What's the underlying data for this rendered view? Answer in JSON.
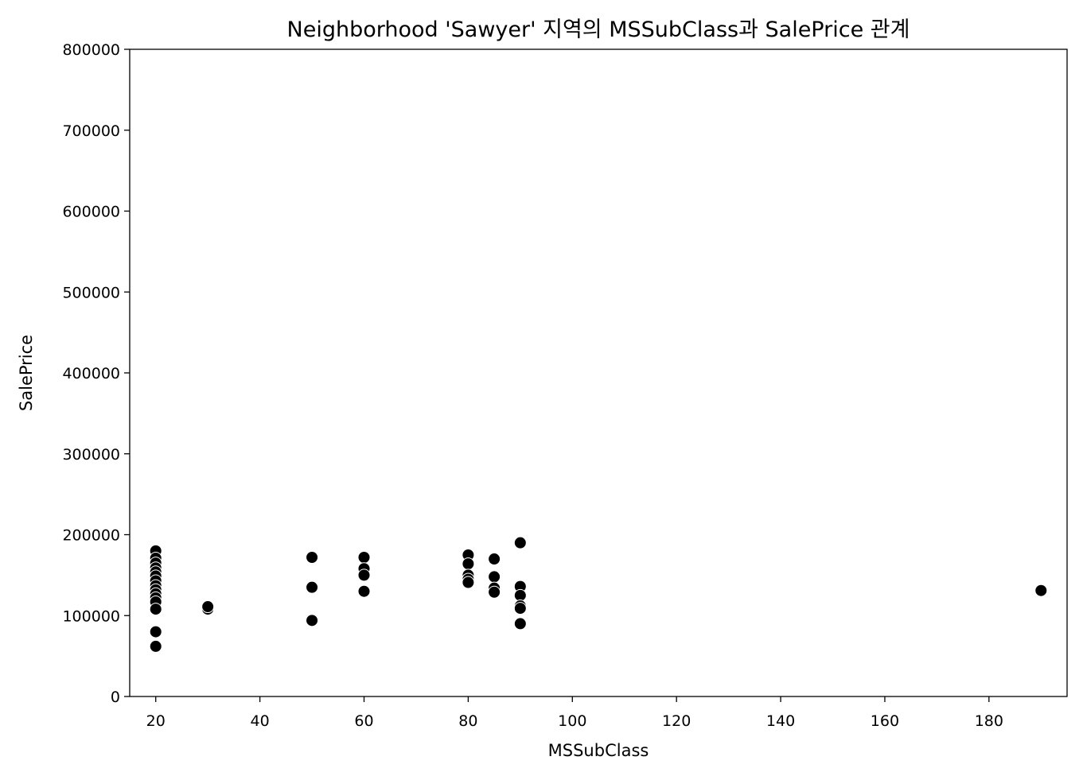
{
  "chart_data": {
    "type": "scatter",
    "title": "Neighborhood 'Sawyer' 지역의 MSSubClass과 SalePrice 관계",
    "xlabel": "MSSubClass",
    "ylabel": "SalePrice",
    "xlim": [
      15,
      195
    ],
    "ylim": [
      0,
      800000
    ],
    "xticks": [
      20,
      40,
      60,
      80,
      100,
      120,
      140,
      160,
      180
    ],
    "yticks": [
      0,
      100000,
      200000,
      300000,
      400000,
      500000,
      600000,
      700000,
      800000
    ],
    "grid": false,
    "marker_color": "#000000",
    "marker_edge_color": "#ffffff",
    "points": [
      [
        20,
        180000
      ],
      [
        20,
        171000
      ],
      [
        20,
        165000
      ],
      [
        20,
        159000
      ],
      [
        20,
        154000
      ],
      [
        20,
        149000
      ],
      [
        20,
        143000
      ],
      [
        20,
        137000
      ],
      [
        20,
        132000
      ],
      [
        20,
        127000
      ],
      [
        20,
        122000
      ],
      [
        20,
        117000
      ],
      [
        20,
        108000
      ],
      [
        20,
        80000
      ],
      [
        20,
        62000
      ],
      [
        30,
        108000
      ],
      [
        30,
        111000
      ],
      [
        50,
        172000
      ],
      [
        50,
        135000
      ],
      [
        50,
        94000
      ],
      [
        60,
        172000
      ],
      [
        60,
        158000
      ],
      [
        60,
        150000
      ],
      [
        60,
        130000
      ],
      [
        80,
        175000
      ],
      [
        80,
        164000
      ],
      [
        80,
        150000
      ],
      [
        80,
        145000
      ],
      [
        80,
        141000
      ],
      [
        85,
        170000
      ],
      [
        85,
        148000
      ],
      [
        85,
        134000
      ],
      [
        85,
        129000
      ],
      [
        90,
        190000
      ],
      [
        90,
        136000
      ],
      [
        90,
        125000
      ],
      [
        90,
        112000
      ],
      [
        90,
        109000
      ],
      [
        90,
        90000
      ],
      [
        190,
        131000
      ]
    ]
  }
}
